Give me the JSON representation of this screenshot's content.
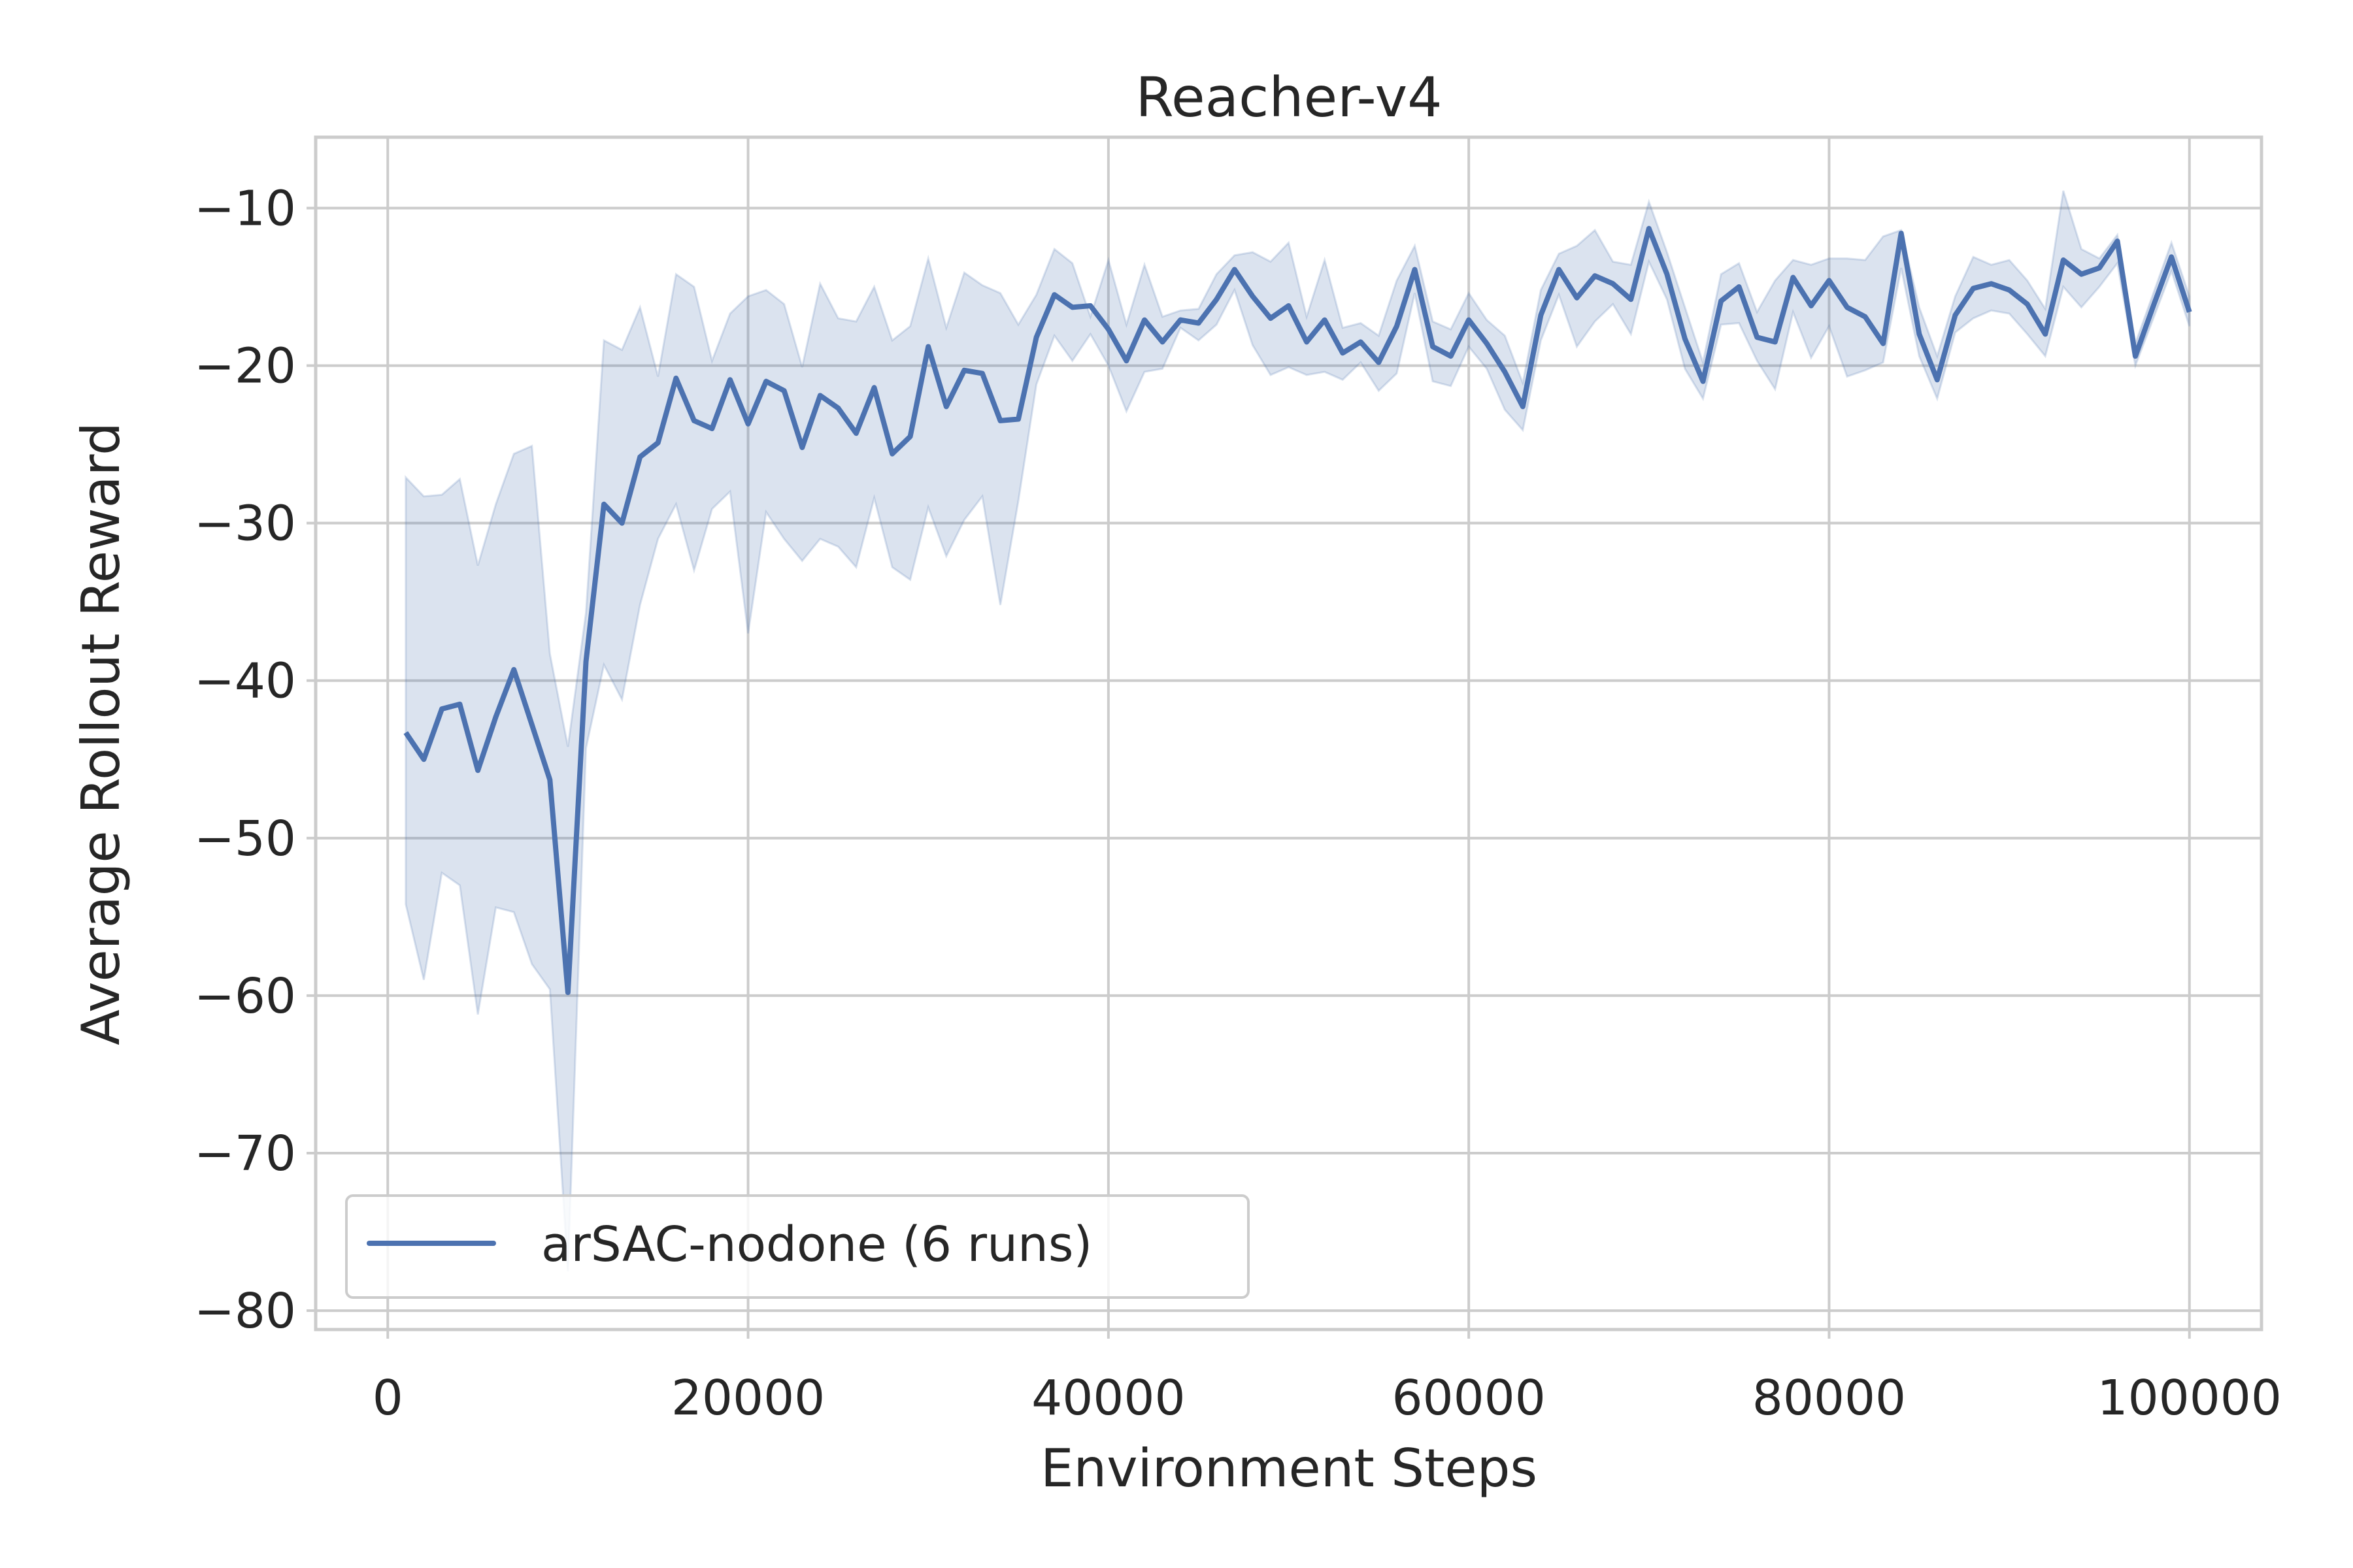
{
  "chart_data": {
    "type": "line",
    "title": "Reacher-v4",
    "xlabel": "Environment Steps",
    "ylabel": "Average Rollout Reward",
    "xlim": [
      -4000,
      104000
    ],
    "ylim": [
      -81.2,
      -5.5
    ],
    "xticks": [
      0,
      20000,
      40000,
      60000,
      80000,
      100000
    ],
    "yticks": [
      -80,
      -70,
      -60,
      -50,
      -40,
      -30,
      -20,
      -10
    ],
    "xtick_labels": [
      "0",
      "20000",
      "40000",
      "60000",
      "80000",
      "100000"
    ],
    "ytick_labels": [
      "−80",
      "−70",
      "−60",
      "−50",
      "−40",
      "−30",
      "−20",
      "−10"
    ],
    "grid": true,
    "legend_position": "lower-left",
    "colors": {
      "line": "#4c72b0",
      "band": "#4c72b0",
      "grid": "#cccccc",
      "frame": "#cccccc"
    },
    "series": [
      {
        "name": "arSAC-nodone (6 runs)",
        "x": [
          1000,
          2000,
          3000,
          4000,
          5000,
          6000,
          7000,
          8000,
          9000,
          10000,
          11000,
          12000,
          13000,
          14000,
          15000,
          16000,
          17000,
          18000,
          19000,
          20000,
          21000,
          22000,
          23000,
          24000,
          25000,
          26000,
          27000,
          28000,
          29000,
          30000,
          31000,
          32000,
          33000,
          34000,
          35000,
          36000,
          37000,
          38000,
          39000,
          40000,
          41000,
          42000,
          43000,
          44000,
          45000,
          46000,
          47000,
          48000,
          49000,
          50000,
          51000,
          52000,
          53000,
          54000,
          55000,
          56000,
          57000,
          58000,
          59000,
          60000,
          61000,
          62000,
          63000,
          64000,
          65000,
          66000,
          67000,
          68000,
          69000,
          70000,
          71000,
          72000,
          73000,
          74000,
          75000,
          76000,
          77000,
          78000,
          79000,
          80000,
          81000,
          82000,
          83000,
          84000,
          85000,
          86000,
          87000,
          88000,
          89000,
          90000,
          91000,
          92000,
          93000,
          94000,
          95000,
          96000,
          97000,
          98000,
          99000,
          100000
        ],
        "mean": [
          -43.3,
          -45.0,
          -41.8,
          -41.5,
          -45.7,
          -42.3,
          -39.3,
          -42.8,
          -46.3,
          -59.8,
          -38.8,
          -28.8,
          -30.0,
          -25.8,
          -24.9,
          -20.8,
          -23.5,
          -24.0,
          -20.9,
          -23.7,
          -21.0,
          -21.6,
          -25.2,
          -21.9,
          -22.7,
          -24.3,
          -21.4,
          -25.6,
          -24.5,
          -18.8,
          -22.6,
          -20.3,
          -20.5,
          -23.5,
          -23.4,
          -18.2,
          -15.5,
          -16.3,
          -16.2,
          -17.7,
          -19.7,
          -17.1,
          -18.5,
          -17.1,
          -17.3,
          -15.8,
          -13.9,
          -15.6,
          -17.0,
          -16.2,
          -18.5,
          -17.1,
          -19.2,
          -18.5,
          -19.8,
          -17.5,
          -13.9,
          -18.8,
          -19.4,
          -17.1,
          -18.6,
          -20.4,
          -22.6,
          -16.8,
          -13.9,
          -15.7,
          -14.3,
          -14.8,
          -15.8,
          -11.3,
          -14.2,
          -18.3,
          -21.0,
          -15.9,
          -15.0,
          -18.2,
          -18.5,
          -14.4,
          -16.2,
          -14.6,
          -16.3,
          -16.9,
          -18.6,
          -11.6,
          -18.0,
          -20.9,
          -16.8,
          -15.1,
          -14.8,
          -15.2,
          -16.1,
          -18.0,
          -13.3,
          -14.2,
          -13.8,
          -12.1,
          -19.4,
          -16.2,
          -13.1,
          -16.6
        ],
        "lower": [
          -54.2,
          -59.0,
          -52.2,
          -53.0,
          -61.2,
          -54.4,
          -54.7,
          -58.0,
          -59.6,
          -77.5,
          -44.3,
          -39.0,
          -41.2,
          -35.2,
          -31.0,
          -28.8,
          -33.0,
          -29.1,
          -28.0,
          -37.0,
          -29.3,
          -31.0,
          -32.4,
          -31.0,
          -31.5,
          -32.8,
          -28.4,
          -32.8,
          -33.6,
          -29.0,
          -32.1,
          -29.8,
          -28.3,
          -35.2,
          -28.6,
          -21.2,
          -18.1,
          -19.7,
          -18.0,
          -20.0,
          -22.9,
          -20.4,
          -20.2,
          -17.6,
          -18.4,
          -17.4,
          -15.2,
          -18.7,
          -20.6,
          -20.1,
          -20.6,
          -20.4,
          -20.9,
          -19.8,
          -21.6,
          -20.5,
          -15.4,
          -21.0,
          -21.3,
          -18.8,
          -20.2,
          -22.8,
          -24.1,
          -18.4,
          -15.5,
          -18.8,
          -17.2,
          -16.1,
          -18.0,
          -13.4,
          -15.8,
          -20.2,
          -22.1,
          -17.4,
          -17.3,
          -19.7,
          -21.5,
          -16.6,
          -19.5,
          -17.5,
          -20.7,
          -20.3,
          -19.8,
          -13.8,
          -19.4,
          -22.1,
          -17.9,
          -17.0,
          -16.5,
          -16.7,
          -18.0,
          -19.4,
          -15.0,
          -16.3,
          -15.0,
          -13.5,
          -20.0,
          -17.0,
          -14.0,
          -17.5
        ],
        "upper": [
          -27.1,
          -28.3,
          -28.2,
          -27.2,
          -32.7,
          -28.8,
          -25.6,
          -25.1,
          -38.3,
          -44.2,
          -35.7,
          -18.4,
          -19.0,
          -16.3,
          -20.7,
          -14.2,
          -15.0,
          -19.7,
          -16.7,
          -15.6,
          -15.2,
          -16.1,
          -20.1,
          -14.8,
          -17.0,
          -17.2,
          -15.0,
          -18.4,
          -17.5,
          -13.2,
          -17.6,
          -14.1,
          -14.9,
          -15.4,
          -17.4,
          -15.5,
          -12.6,
          -13.5,
          -16.9,
          -13.3,
          -17.4,
          -13.6,
          -16.9,
          -16.5,
          -16.4,
          -14.2,
          -13.0,
          -12.8,
          -13.4,
          -12.2,
          -16.9,
          -13.3,
          -17.6,
          -17.3,
          -18.1,
          -14.6,
          -12.4,
          -17.2,
          -17.7,
          -15.4,
          -17.1,
          -18.1,
          -21.1,
          -15.2,
          -12.9,
          -12.4,
          -11.4,
          -13.4,
          -13.6,
          -9.6,
          -12.8,
          -16.3,
          -19.8,
          -14.2,
          -13.5,
          -16.6,
          -14.6,
          -13.3,
          -13.6,
          -13.2,
          -13.2,
          -13.3,
          -11.8,
          -11.4,
          -16.3,
          -19.4,
          -15.6,
          -13.1,
          -13.6,
          -13.3,
          -14.6,
          -16.4,
          -8.9,
          -12.6,
          -13.2,
          -11.7,
          -18.6,
          -15.4,
          -12.2,
          -15.6
        ]
      }
    ]
  }
}
